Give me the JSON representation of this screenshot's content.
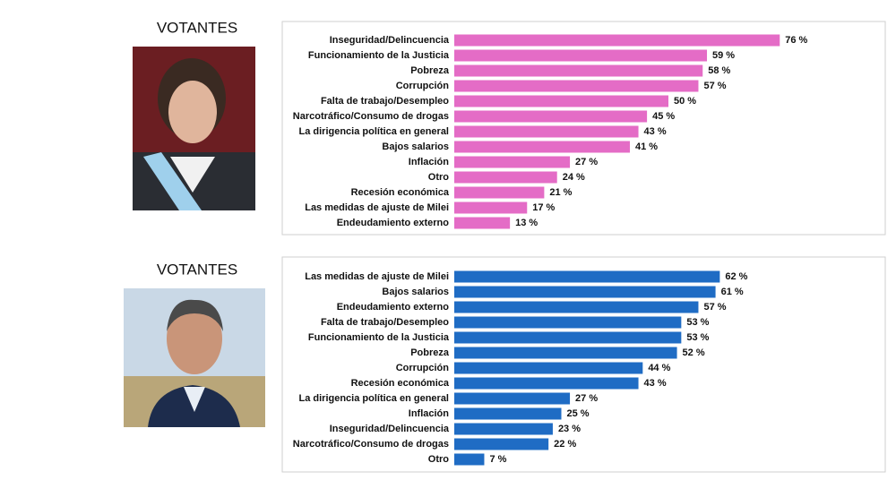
{
  "chart_data": [
    {
      "type": "bar",
      "title": "VOTANTES",
      "color": "#e46cc6",
      "categories": [
        "Inseguridad/Delincuencia",
        "Funcionamiento de la Justicia",
        "Pobreza",
        "Corrupción",
        "Falta de trabajo/Desempleo",
        "Narcotráfico/Consumo de drogas",
        "La dirigencia política en general",
        "Bajos salarios",
        "Inflación",
        "Otro",
        "Recesión económica",
        "Las medidas de ajuste de Milei",
        "Endeudamiento externo"
      ],
      "values": [
        76,
        59,
        58,
        57,
        50,
        45,
        43,
        41,
        27,
        24,
        21,
        17,
        13
      ],
      "value_labels": [
        "76 %",
        "59 %",
        "58 %",
        "57 %",
        "50 %",
        "45 %",
        "43 %",
        "41 %",
        "27 %",
        "24 %",
        "21 %",
        "17 %",
        "13 %"
      ]
    },
    {
      "type": "bar",
      "title": "VOTANTES",
      "color": "#1f6cc4",
      "categories": [
        "Las medidas de ajuste de Milei",
        "Bajos salarios",
        "Endeudamiento externo",
        "Falta de trabajo/Desempleo",
        "Funcionamiento de la Justicia",
        "Pobreza",
        "Corrupción",
        "Recesión económica",
        "La dirigencia política en general",
        "Inflación",
        "Inseguridad/Delincuencia",
        "Narcotráfico/Consumo de drogas",
        "Otro"
      ],
      "values": [
        62,
        61,
        57,
        53,
        53,
        52,
        44,
        43,
        27,
        25,
        23,
        22,
        7
      ],
      "value_labels": [
        "62 %",
        "61 %",
        "57 %",
        "53 %",
        "53 %",
        "52 %",
        "44 %",
        "43 %",
        "27 %",
        "25 %",
        "23 %",
        "22 %",
        "7 %"
      ]
    }
  ]
}
